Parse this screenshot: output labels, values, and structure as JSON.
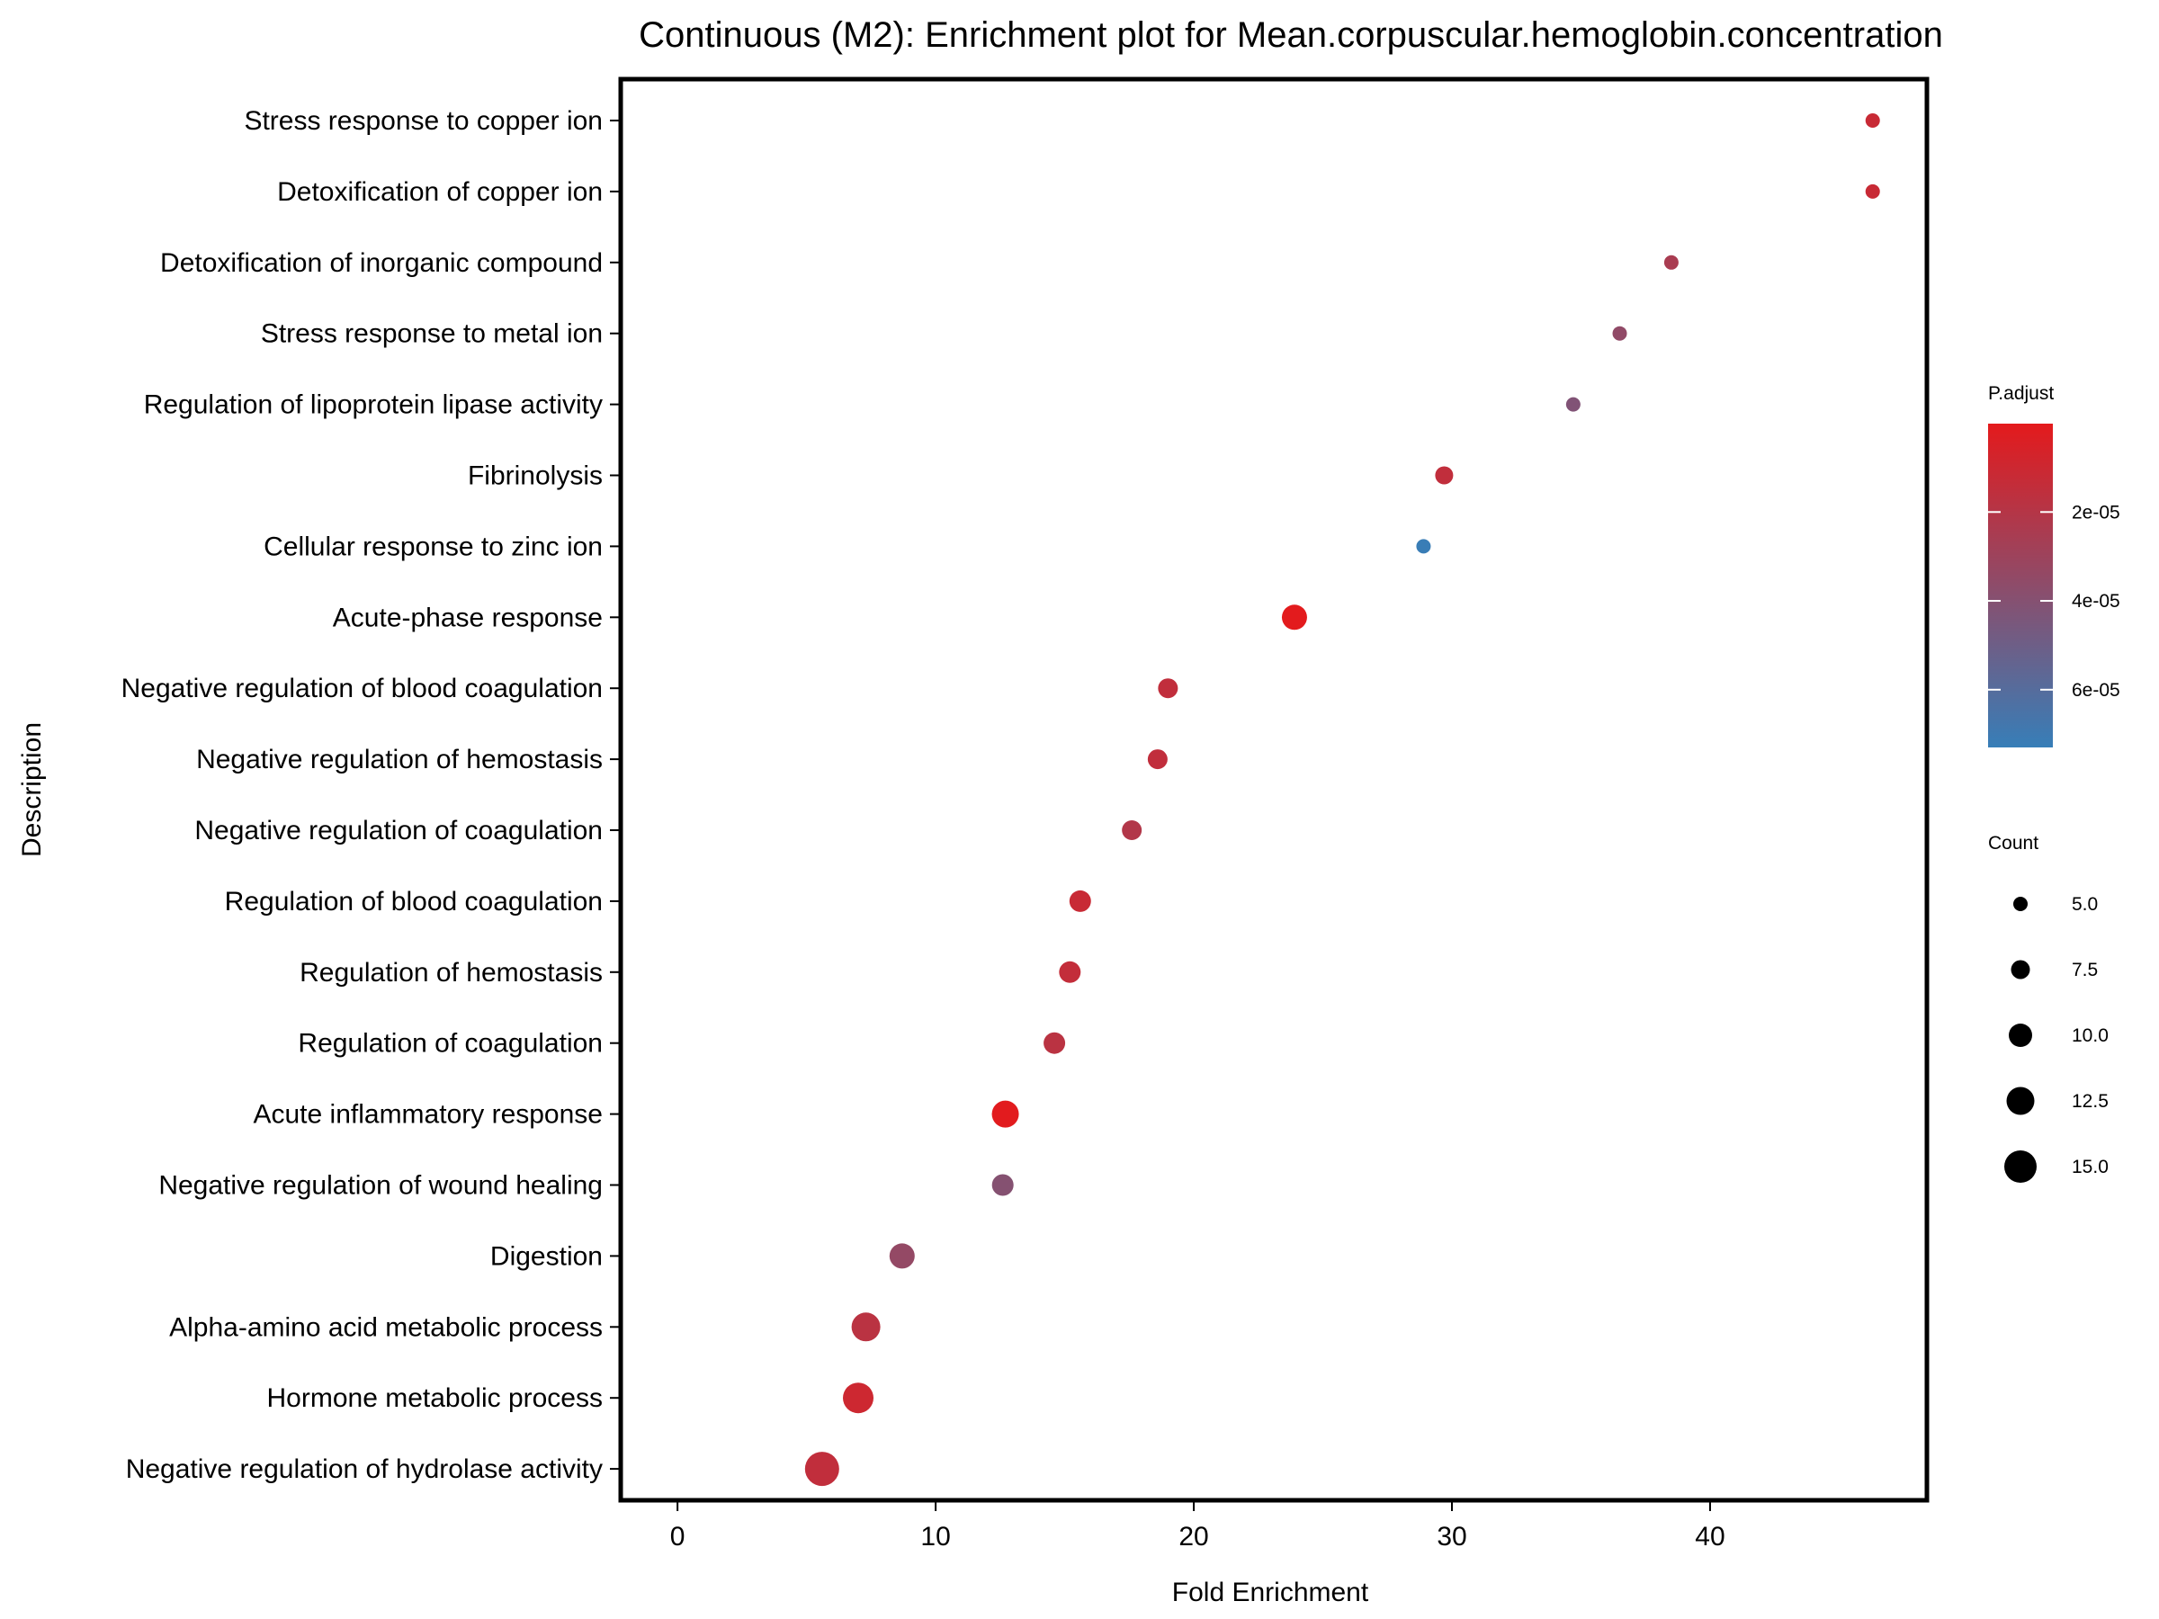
{
  "chart_data": {
    "type": "scatter",
    "title": "Continuous (M2): Enrichment plot for Mean.corpuscular.hemoglobin.concentration",
    "xlabel": "Fold Enrichment",
    "ylabel": "Description",
    "xlim": [
      -2.2,
      48.4
    ],
    "x_ticks": [
      0,
      10,
      20,
      30,
      40
    ],
    "x_tick_labels": [
      "0",
      "10",
      "20",
      "30",
      "40"
    ],
    "grid": false,
    "categories": [
      "Stress response to copper ion",
      "Detoxification of copper ion",
      "Detoxification of inorganic compound",
      "Stress response to metal ion",
      "Regulation of lipoprotein lipase activity",
      "Fibrinolysis",
      "Cellular response to zinc ion",
      "Acute-phase response",
      "Negative regulation of blood coagulation",
      "Negative regulation of hemostasis",
      "Negative regulation of coagulation",
      "Regulation of blood coagulation",
      "Regulation of hemostasis",
      "Regulation of coagulation",
      "Acute inflammatory response",
      "Negative regulation of wound healing",
      "Digestion",
      "Alpha-amino acid metabolic process",
      "Hormone metabolic process",
      "Negative regulation of hydrolase activity"
    ],
    "points": [
      {
        "category": "Stress response to copper ion",
        "fold_enrichment": 46.3,
        "count": 5,
        "p_adjust": 1.2e-05
      },
      {
        "category": "Detoxification of copper ion",
        "fold_enrichment": 46.3,
        "count": 5,
        "p_adjust": 1.2e-05
      },
      {
        "category": "Detoxification of inorganic compound",
        "fold_enrichment": 38.5,
        "count": 5,
        "p_adjust": 2.5e-05
      },
      {
        "category": "Stress response to metal ion",
        "fold_enrichment": 36.5,
        "count": 5,
        "p_adjust": 3.5e-05
      },
      {
        "category": "Regulation of lipoprotein lipase activity",
        "fold_enrichment": 34.7,
        "count": 5,
        "p_adjust": 4.2e-05
      },
      {
        "category": "Fibrinolysis",
        "fold_enrichment": 29.7,
        "count": 7,
        "p_adjust": 1.5e-05
      },
      {
        "category": "Cellular response to zinc ion",
        "fold_enrichment": 28.9,
        "count": 5,
        "p_adjust": 7.2e-05
      },
      {
        "category": "Acute-phase response",
        "fold_enrichment": 23.9,
        "count": 11,
        "p_adjust": 5e-07
      },
      {
        "category": "Negative regulation of blood coagulation",
        "fold_enrichment": 19.0,
        "count": 8,
        "p_adjust": 1.5e-05
      },
      {
        "category": "Negative regulation of hemostasis",
        "fold_enrichment": 18.6,
        "count": 8,
        "p_adjust": 1.5e-05
      },
      {
        "category": "Negative regulation of coagulation",
        "fold_enrichment": 17.6,
        "count": 8,
        "p_adjust": 2.1e-05
      },
      {
        "category": "Regulation of blood coagulation",
        "fold_enrichment": 15.6,
        "count": 9,
        "p_adjust": 1.2e-05
      },
      {
        "category": "Regulation of hemostasis",
        "fold_enrichment": 15.2,
        "count": 9,
        "p_adjust": 1.4e-05
      },
      {
        "category": "Regulation of coagulation",
        "fold_enrichment": 14.6,
        "count": 9,
        "p_adjust": 1.8e-05
      },
      {
        "category": "Acute inflammatory response",
        "fold_enrichment": 12.7,
        "count": 12,
        "p_adjust": 1e-06
      },
      {
        "category": "Negative regulation of wound healing",
        "fold_enrichment": 12.6,
        "count": 9,
        "p_adjust": 4e-05
      },
      {
        "category": "Digestion",
        "fold_enrichment": 8.7,
        "count": 11,
        "p_adjust": 3.4e-05
      },
      {
        "category": "Alpha-amino acid metabolic process",
        "fold_enrichment": 7.3,
        "count": 13,
        "p_adjust": 1.8e-05
      },
      {
        "category": "Hormone metabolic process",
        "fold_enrichment": 7.0,
        "count": 14,
        "p_adjust": 1e-05
      },
      {
        "category": "Negative regulation of hydrolase activity",
        "fold_enrichment": 5.6,
        "count": 16,
        "p_adjust": 1.5e-05
      }
    ],
    "legend_color": {
      "title": "P.adjust",
      "range": [
        1e-07,
        7.3e-05
      ],
      "low_color": "#e41a1c",
      "high_color": "#377eb8",
      "ticks": [
        2e-05,
        4e-05,
        6e-05
      ],
      "tick_labels": [
        "2e-05",
        "4e-05",
        "6e-05"
      ]
    },
    "legend_size": {
      "title": "Count",
      "values": [
        5,
        7.5,
        10,
        12.5,
        15
      ],
      "labels": [
        "5.0",
        "7.5",
        "10.0",
        "12.5",
        "15.0"
      ]
    },
    "legend_placement": "right"
  }
}
